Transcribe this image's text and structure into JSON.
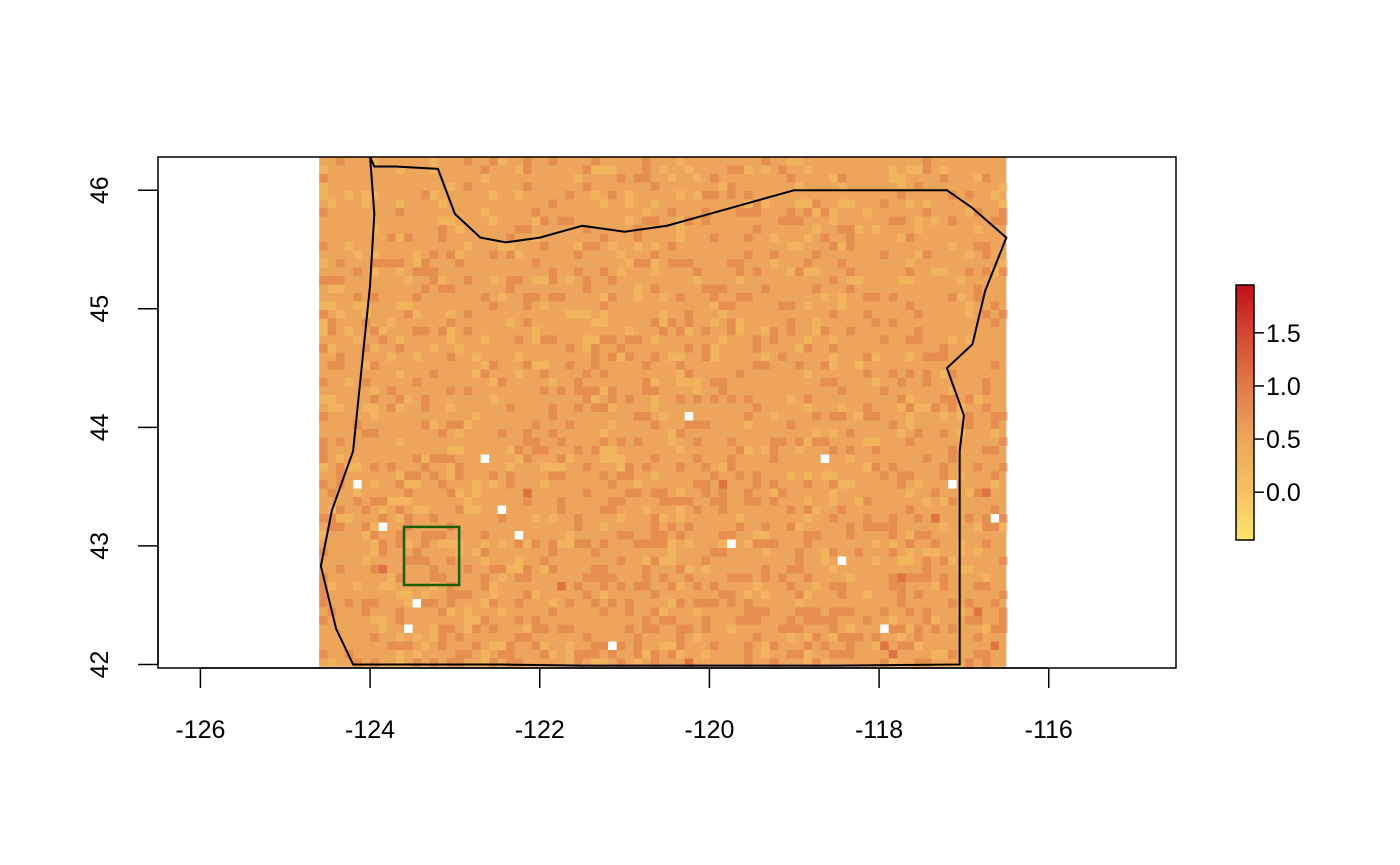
{
  "map": {
    "x_axis": {
      "range": [
        -126.5,
        -114.5
      ],
      "ticks": [
        "-126",
        "-124",
        "-122",
        "-120",
        "-118",
        "-116"
      ],
      "tick_values": [
        -126,
        -124,
        -122,
        -120,
        -118,
        -116
      ]
    },
    "y_axis": {
      "range": [
        41.97,
        46.28
      ],
      "ticks": [
        "42",
        "43",
        "44",
        "45",
        "46"
      ],
      "tick_values": [
        42,
        43,
        44,
        45,
        46
      ]
    },
    "raster": {
      "extent": {
        "lon": [
          -124.6,
          -116.5
        ],
        "lat": [
          41.98,
          46.28
        ]
      },
      "base_color": "#ECA55A",
      "no_data_color": "#ffffff"
    },
    "state_outline": {
      "color": "#000000",
      "points": [
        [
          -124.0,
          46.28
        ],
        [
          -123.95,
          46.2
        ],
        [
          -123.7,
          46.2
        ],
        [
          -123.2,
          46.18
        ],
        [
          -123.0,
          45.8
        ],
        [
          -122.7,
          45.6
        ],
        [
          -122.4,
          45.56
        ],
        [
          -122.0,
          45.6
        ],
        [
          -121.5,
          45.7
        ],
        [
          -121.0,
          45.65
        ],
        [
          -120.5,
          45.7
        ],
        [
          -120.0,
          45.8
        ],
        [
          -119.5,
          45.9
        ],
        [
          -119.0,
          46.0
        ],
        [
          -118.0,
          46.0
        ],
        [
          -117.2,
          46.0
        ],
        [
          -116.9,
          45.85
        ],
        [
          -116.5,
          45.6
        ],
        [
          -116.75,
          45.15
        ],
        [
          -116.9,
          44.7
        ],
        [
          -117.2,
          44.5
        ],
        [
          -117.0,
          44.1
        ],
        [
          -117.05,
          43.8
        ],
        [
          -117.05,
          43.0
        ],
        [
          -117.05,
          42.0
        ],
        [
          -118.5,
          41.99
        ],
        [
          -120.0,
          41.99
        ],
        [
          -121.5,
          41.99
        ],
        [
          -122.5,
          42.0
        ],
        [
          -124.2,
          42.0
        ],
        [
          -124.4,
          42.3
        ],
        [
          -124.58,
          42.83
        ],
        [
          -124.45,
          43.3
        ],
        [
          -124.2,
          43.8
        ],
        [
          -124.1,
          44.5
        ],
        [
          -124.0,
          45.2
        ],
        [
          -123.95,
          45.8
        ],
        [
          -124.0,
          46.28
        ]
      ]
    },
    "study_area_box": {
      "lon": [
        -123.6,
        -122.95
      ],
      "lat": [
        42.67,
        43.16
      ],
      "color": "#1B5E00"
    }
  },
  "legend": {
    "ticks": [
      "1.5",
      "1.0",
      "0.5",
      "0.0"
    ],
    "tick_values": [
      1.5,
      1.0,
      0.5,
      0.0
    ],
    "range": [
      -0.45,
      1.95
    ],
    "colors": [
      "#FCE46A",
      "#F5C060",
      "#ECA55A",
      "#E27B48",
      "#D54A33",
      "#C4101A"
    ]
  }
}
